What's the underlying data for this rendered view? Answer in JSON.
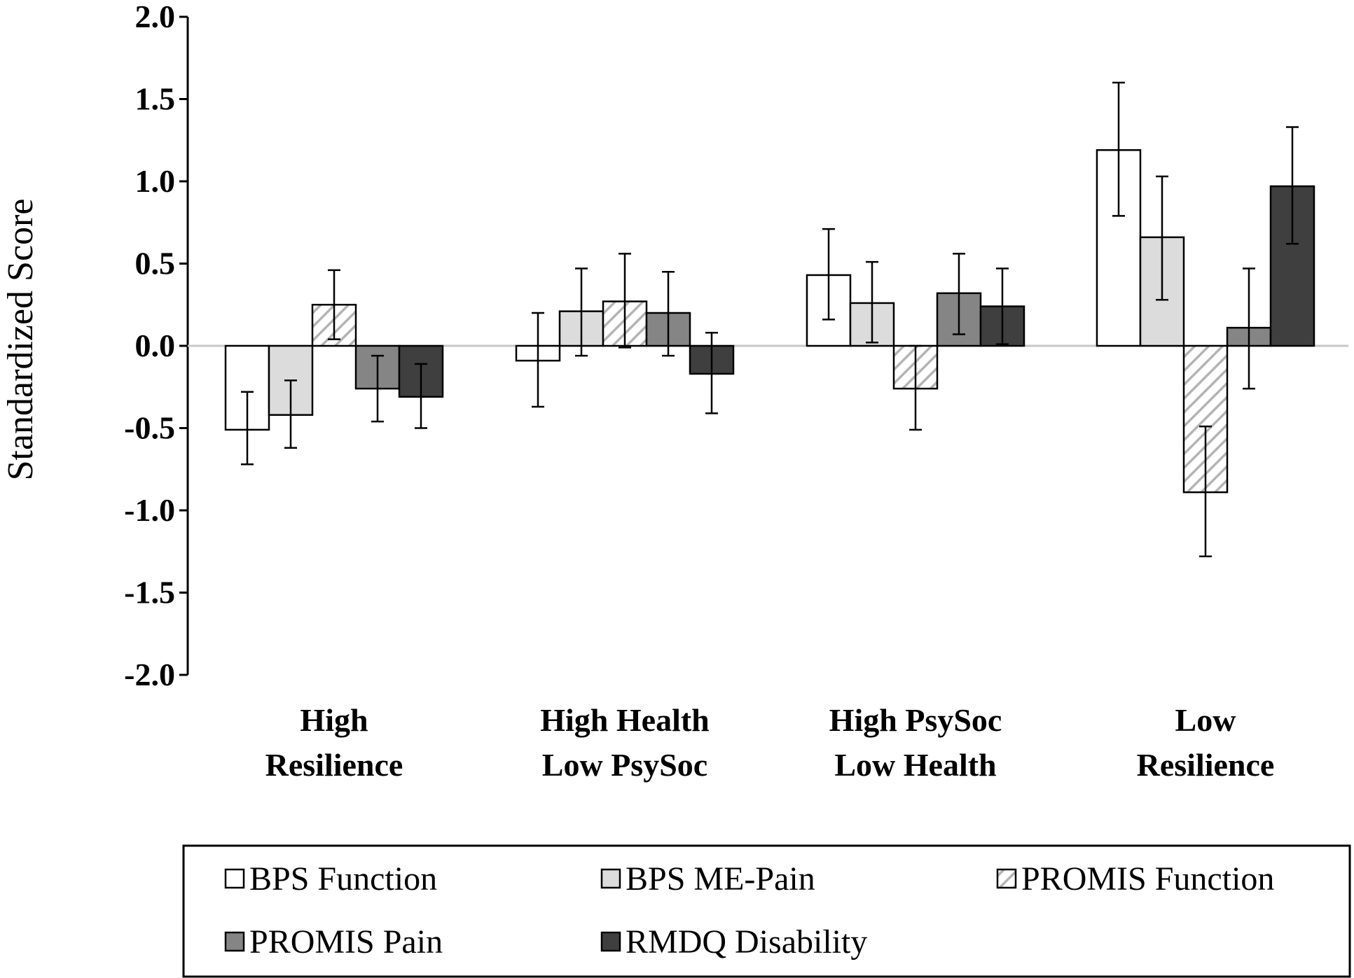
{
  "chart_data": {
    "type": "bar",
    "title": "",
    "xlabel": "",
    "ylabel": "Standardized  Score",
    "ylim": [
      -2.0,
      2.0
    ],
    "yticks": [
      "2.0",
      "1.5",
      "1.0",
      "0.5",
      "0.0",
      "-0.5",
      "-1.0",
      "-1.5",
      "-2.0"
    ],
    "ytick_values": [
      2.0,
      1.5,
      1.0,
      0.5,
      0.0,
      -0.5,
      -1.0,
      -1.5,
      -2.0
    ],
    "categories": [
      [
        "High",
        "Resilience"
      ],
      [
        "High Health",
        "Low PsySoc"
      ],
      [
        "High PsySoc",
        "Low Health"
      ],
      [
        "Low",
        "Resilience"
      ]
    ],
    "series": [
      {
        "name": "BPS Function",
        "fill": "#ffffff",
        "pattern": "none",
        "values": [
          -0.51,
          -0.09,
          0.43,
          1.19
        ],
        "err_low": [
          -0.72,
          -0.37,
          0.16,
          0.79
        ],
        "err_high": [
          -0.28,
          0.2,
          0.71,
          1.6
        ]
      },
      {
        "name": "BPS ME-Pain",
        "fill": "#dcdcdc",
        "pattern": "none",
        "values": [
          -0.42,
          0.21,
          0.26,
          0.66
        ],
        "err_low": [
          -0.62,
          -0.06,
          0.02,
          0.28
        ],
        "err_high": [
          -0.21,
          0.47,
          0.51,
          1.03
        ]
      },
      {
        "name": "PROMIS Function",
        "fill": "#ffffff",
        "pattern": "hatch",
        "values": [
          0.25,
          0.27,
          -0.26,
          -0.89
        ],
        "err_low": [
          0.04,
          -0.01,
          -0.51,
          -1.28
        ],
        "err_high": [
          0.46,
          0.56,
          0.0,
          -0.49
        ]
      },
      {
        "name": "PROMIS Pain",
        "fill": "#858585",
        "pattern": "none",
        "values": [
          -0.26,
          0.2,
          0.32,
          0.11
        ],
        "err_low": [
          -0.46,
          -0.06,
          0.07,
          -0.26
        ],
        "err_high": [
          -0.06,
          0.45,
          0.56,
          0.47
        ]
      },
      {
        "name": "RMDQ Disability",
        "fill": "#3f3f3f",
        "pattern": "none",
        "values": [
          -0.31,
          -0.17,
          0.24,
          0.97
        ],
        "err_low": [
          -0.5,
          -0.41,
          0.01,
          0.62
        ],
        "err_high": [
          -0.11,
          0.08,
          0.47,
          1.33
        ]
      }
    ],
    "legend": {
      "placement": "bottom",
      "columns": 3
    }
  }
}
